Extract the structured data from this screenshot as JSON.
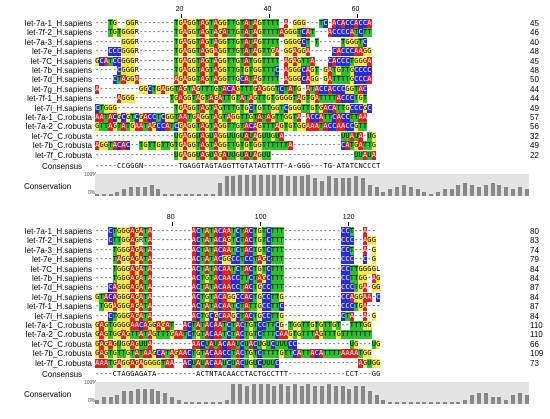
{
  "blocks": [
    {
      "ruler": [
        {
          "label": "20",
          "pos": 20
        },
        {
          "label": "40",
          "pos": 40
        },
        {
          "label": "60",
          "pos": 60
        }
      ],
      "rows": [
        {
          "name": "let-7a-1_H.sapiens",
          "seq": "---TG--GGR--------TGAGGTAGTAGGTTGTATAGTTTT-A-GGG---TC-ACACCACCA",
          "count": "45"
        },
        {
          "name": "let-7f-2_H.sapiens",
          "seq": "---TGTGGGR--------TGAGGTAGTAGATTGTATAGTTTTAGGGTCAT---ACCCCATCTT",
          "count": "46"
        },
        {
          "name": "let-7a-3_H.sapiens",
          "seq": "------GGGR--------TGAGGTAGTAGGTTGTATAGTTTT-GGGGCT-T-----TGGGTC",
          "count": "40"
        },
        {
          "name": "let-7e_H.sapiens",
          "seq": "---CCCGGGR--------TGAGGTAGGAGGTTGTATAGTTGA-GGAGGA-----CACCCAAGG",
          "count": "48"
        },
        {
          "name": "let-7C_H.sapiens",
          "seq": "GCATCCGGGR--------TGAGGTAGTAGGTTGTATGGTTTT-AGAGTTA---CACCCTGGGA",
          "count": "45"
        },
        {
          "name": "let-7b_H.sapiens",
          "seq": "-----CGGGR--------TGAGGTAGTAGGTTGTGTGGTTTC-AGGGCAGT-GATGTTGCCCC",
          "count": "48"
        },
        {
          "name": "let-7d_H.sapiens",
          "seq": "----CTAGGA--------AGAGGTAGTAGGTTGCATAGTTTT-AGGGCAGG-GATTTTGCCCA",
          "count": "50"
        },
        {
          "name": "let-7g_H.sapiens",
          "seq": "A---------GGCTGAGGTAGTAGTTTGTACAGTTTGAGGGTCTATG-ATACCACCCGGTAC",
          "count": "44"
        },
        {
          "name": "let-7f-1_H.sapiens",
          "seq": "-----AGGG--------TGAGGTAGTAGATTGTATAGTTGTGGGGTAGTGATTTTACCCTGT",
          "count": "44"
        },
        {
          "name": "let-7i_H.sapiens",
          "seq": "CTGGG-------------TGAGGTAGTAGTTTGTGCTGTTGGTCGGGTTGTGACATTGCCCGC",
          "count": "49"
        },
        {
          "name": "let-7a-1_C.robusta",
          "seq": "AATACGCGTCGACCTCGGTAATGAGGTAGTAGGTTGTATAGTTGGTA-ACCATTCACCTTAA",
          "count": "57"
        },
        {
          "name": "let-7a-2_C.robusta",
          "seq": "GTTAGTATGAATAGCCATCGAGGTAGTAGGTTGTACAGTTTAGTGTGGAAATACCAACCGTT",
          "count": "56"
        },
        {
          "name": "let-7C_C.robusta",
          "seq": "------------------UGAGGUAGUAGGUUGUAUAGUUGUA-------------UUAUA-UG",
          "count": "32"
        },
        {
          "name": "let-7b_C.robusta",
          "seq": "AGGTACAC--TGTTGTTGTGAGGTAGTAGGTTGTGTGGTTTTTTA-----------CATGATTG",
          "count": "49"
        },
        {
          "name": "let-7f_C.robusta",
          "seq": "------------------UGAGGUAGUAGAUUGUAUAGUU-------------------UUAUA",
          "count": "22"
        }
      ],
      "consensus": "-----CCGGGN--------TGAGGTAGTAGGTTGTATAGTTTT-A-GGG---TG-ATATCNCCCT",
      "conservation": [
        10,
        10,
        10,
        20,
        30,
        40,
        40,
        40,
        50,
        30,
        10,
        10,
        10,
        10,
        10,
        10,
        10,
        10,
        60,
        90,
        90,
        95,
        95,
        95,
        95,
        95,
        95,
        95,
        90,
        90,
        90,
        95,
        80,
        70,
        90,
        80,
        80,
        80,
        90,
        80,
        50,
        40,
        20,
        30,
        40,
        50,
        40,
        30,
        20,
        10,
        20,
        30,
        30,
        50,
        60,
        50,
        40,
        50,
        60,
        50,
        40,
        30,
        40,
        30
      ],
      "conservation_label": "Conservation",
      "consensus_label": "Consensus"
    },
    {
      "ruler": [
        {
          "label": "80",
          "pos": 80
        },
        {
          "label": "100",
          "pos": 100
        },
        {
          "label": "120",
          "pos": 120
        }
      ],
      "rows": [
        {
          "name": "let-7a-1_H.sapiens",
          "seq": "---CTGGGAGATA---------ACTATACAATCTACTGTCTTT-------------CCT--A--",
          "count": "80"
        },
        {
          "name": "let-7f-2_H.sapiens",
          "seq": "---CTTGGAGRTA---------ACTATACAGTCTACTGTCTTT-------------CCC--AGG",
          "count": "83"
        },
        {
          "name": "let-7a-3_H.sapiens",
          "seq": "----TGGGAGATA---------ACTATACAATCTACTGTCTTT-------------CCT--A-G",
          "count": "74"
        },
        {
          "name": "let-7e_H.sapiens",
          "seq": "----TAGGAGATA---------ACTATACGGCCTCCTAGCTTT-------------CCC--C-G",
          "count": "79"
        },
        {
          "name": "let-7C_H.sapiens",
          "seq": "----TGGGAGATA---------ACTATACAATCTACTGTCTTT-------------CCTTGGGGL",
          "count": "84"
        },
        {
          "name": "let-7b_H.sapiens",
          "seq": "----TGGGAGATA---------ACTGTACAACCTTCTAGCTTT-------------CCTTGG-AG",
          "count": "84"
        },
        {
          "name": "let-7d_H.sapiens",
          "seq": "---CAGGGAGATA---------ACTATACAACCTACTGCCTTT-------------CCCTGA-GG",
          "count": "87"
        },
        {
          "name": "let-7g_H.sapiens",
          "seq": "GTACAGGGAGATA---------ACTGTACAGGCCACTGCCTTG-------------CCAGGAA-C",
          "count": "84"
        },
        {
          "name": "let-7f-1_H.sapiens",
          "seq": "-TGGAGGGAGATA---------ACTATACAATCTATTGCCTTC-------------CCCTGA---",
          "count": "87"
        },
        {
          "name": "let-7i_H.sapiens",
          "seq": "---CTGGGAGATA---------ACTGCGCAAGCTACTGCCTTG-------------CTA--A-G",
          "count": "84"
        },
        {
          "name": "let-7a-1_C.robusta",
          "seq": "GAGTGGGGAACAGGAGAT--ACTATACAATCTACTGTCCTTCG-TGGTTGTGTTGT--TTTGG",
          "count": "110"
        },
        {
          "name": "let-7a-2_C.robusta",
          "seq": "GAGTGGAGTTATAGTTTGAATCTGTACAATCTACTGTCTTTCAAGTGTTTAGTTTGTTTTTTT",
          "count": "110"
        },
        {
          "name": "let-7C_C.robusta",
          "seq": "GAGAGUGGAGUUA---------AACUAUACAAUCUACUGUCUUUCC------------UG---UG",
          "count": "66"
        },
        {
          "name": "let-7b_C.robusta",
          "seq": "GAGTGTTGTATAAGCATAGAACTGTACAACCTACTGTCTTTTGTTCATTACATTTTAAAATGG",
          "count": "109"
        },
        {
          "name": "let-7f_C.robusta",
          "seq": "AAATGAGGAGAGGGGTAA--ACUAUACAAUCUACUGUCUUUC------------------AGUGG",
          "count": "73"
        }
      ],
      "consensus": "----CTAGGAGATA---------ACTNTACAACCTACTGCCTTT-------------CCT---GG",
      "conservation": [
        20,
        30,
        30,
        40,
        60,
        60,
        70,
        70,
        70,
        60,
        50,
        30,
        20,
        10,
        10,
        10,
        10,
        10,
        10,
        20,
        90,
        90,
        80,
        90,
        90,
        90,
        80,
        90,
        80,
        90,
        80,
        90,
        80,
        80,
        90,
        80,
        80,
        70,
        80,
        80,
        60,
        40,
        20,
        10,
        10,
        10,
        10,
        10,
        10,
        10,
        10,
        10,
        10,
        10,
        20,
        40,
        50,
        50,
        30,
        30,
        20,
        40,
        50,
        40
      ],
      "conservation_label": "Conservation",
      "consensus_label": "Consensus"
    }
  ],
  "colors": {
    "A": "#e01f1f",
    "C": "#2b2bd6",
    "G": "#f7e84a",
    "T": "#2ec12e",
    "U": "#2ec12e"
  },
  "pct_labels": {
    "top": "100%",
    "bottom": "0%"
  }
}
